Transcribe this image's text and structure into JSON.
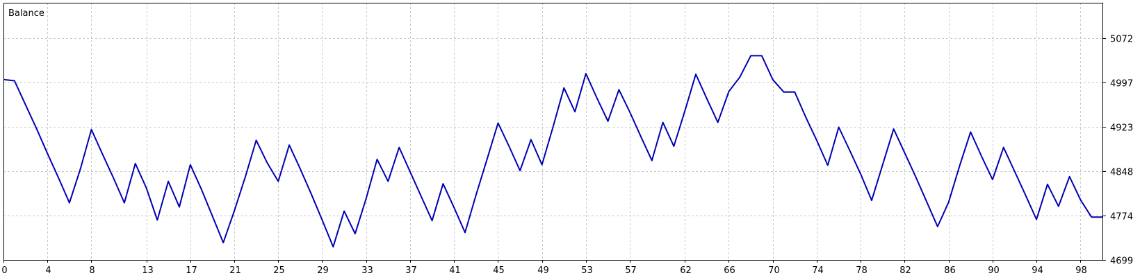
{
  "chart_data": {
    "type": "line",
    "title": "Balance",
    "xlabel": "",
    "ylabel": "",
    "xlim": [
      0,
      100
    ],
    "ylim": [
      4699,
      5131
    ],
    "x_ticks": [
      "0",
      "4",
      "8",
      "13",
      "17",
      "21",
      "25",
      "29",
      "33",
      "37",
      "41",
      "45",
      "49",
      "53",
      "57",
      "62",
      "66",
      "70",
      "74",
      "78",
      "82",
      "86",
      "90",
      "94",
      "98"
    ],
    "y_ticks": [
      "5072",
      "4997",
      "4923",
      "4848",
      "4774",
      "4699"
    ],
    "grid": true,
    "colors": {
      "line": "#0000b4",
      "grid": "#c8c8c8",
      "frame": "#000000",
      "background": "#ffffff"
    },
    "series": [
      {
        "x": [
          0,
          1,
          2,
          3,
          4,
          5,
          6,
          7,
          8,
          9,
          10,
          11,
          12,
          13,
          14,
          15,
          16,
          17,
          18,
          19,
          20,
          21,
          22,
          23,
          24,
          25,
          26,
          27,
          28,
          29,
          30,
          31,
          32,
          33,
          34,
          35,
          36,
          37,
          38,
          39,
          40,
          41,
          42,
          43,
          44,
          45,
          46,
          47,
          48,
          49,
          50,
          51,
          52,
          53,
          54,
          55,
          56,
          57,
          58,
          59,
          60,
          61,
          62,
          63,
          64,
          65,
          66,
          67,
          68,
          69,
          70,
          71,
          72,
          73,
          74,
          75,
          76,
          77,
          78,
          79,
          80,
          81,
          82,
          83,
          84,
          85,
          86,
          87,
          88,
          89,
          90,
          91,
          92,
          93,
          94,
          95,
          96,
          97,
          98,
          99,
          100
        ],
        "values": [
          5002,
          5000,
          4960,
          4920,
          4878,
          4837,
          4795,
          4852,
          4918,
          4877,
          4837,
          4795,
          4861,
          4820,
          4766,
          4831,
          4788,
          4859,
          4818,
          4773,
          4728,
          4781,
          4838,
          4900,
          4862,
          4831,
          4892,
          4852,
          4810,
          4766,
          4721,
          4781,
          4743,
          4802,
          4868,
          4831,
          4888,
          4847,
          4806,
          4765,
          4827,
          4787,
          4745,
          4808,
          4868,
          4929,
          4890,
          4849,
          4901,
          4859,
          4922,
          4988,
          4948,
          5012,
          4971,
          4932,
          4985,
          4947,
          4906,
          4866,
          4930,
          4890,
          4949,
          5011,
          4970,
          4930,
          4982,
          5006,
          5042,
          5042,
          5002,
          4981,
          4981,
          4939,
          4900,
          4858,
          4922,
          4883,
          4843,
          4799,
          4859,
          4919,
          4879,
          4839,
          4797,
          4755,
          4796,
          4857,
          4914,
          4873,
          4834,
          4888,
          4848,
          4808,
          4767,
          4826,
          4789,
          4839,
          4800,
          4771,
          4771
        ]
      }
    ]
  }
}
